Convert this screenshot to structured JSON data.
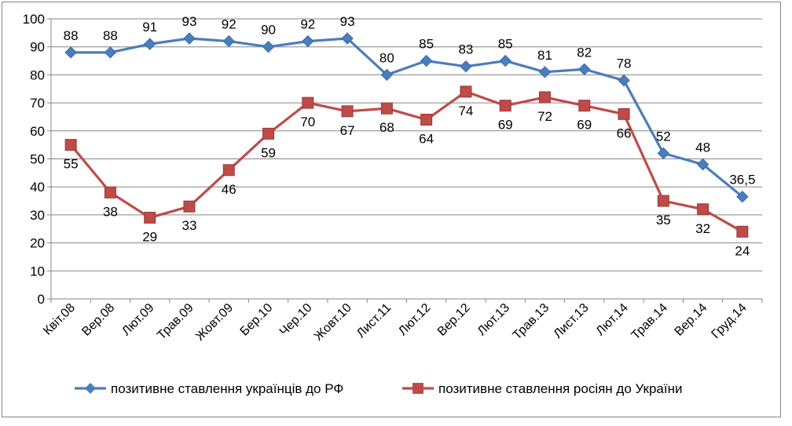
{
  "chart_data": {
    "type": "line",
    "title": "",
    "xlabel": "",
    "ylabel": "",
    "ylim": [
      0,
      100
    ],
    "yticks": [
      0,
      10,
      20,
      30,
      40,
      50,
      60,
      70,
      80,
      90,
      100
    ],
    "grid": true,
    "legend_position": "bottom",
    "categories": [
      "Квіт.08",
      "Вер.08",
      "Лют.09",
      "Трав.09",
      "Жовт.09",
      "Бер.10",
      "Чер.10",
      "Жовт.10",
      "Лист.11",
      "Лют.12",
      "Вер.12",
      "Лют.13",
      "Трав.13",
      "Лист.13",
      "Лют.14",
      "Трав.14",
      "Вер.14",
      "Груд.14"
    ],
    "series": [
      {
        "name": "позитивне ставлення українців до РФ",
        "color": "#4a7ebb",
        "marker": "diamond",
        "label_position": "above",
        "values": [
          88,
          88,
          91,
          93,
          92,
          90,
          92,
          93,
          80,
          85,
          83,
          85,
          81,
          82,
          78,
          52,
          48,
          36.5
        ],
        "labels": [
          "88",
          "88",
          "91",
          "93",
          "92",
          "90",
          "92",
          "93",
          "80",
          "85",
          "83",
          "85",
          "81",
          "82",
          "78",
          "52",
          "48",
          "36,5"
        ]
      },
      {
        "name": "позитивне ставлення росіян до України",
        "color": "#be4b48",
        "marker": "square",
        "label_position": "below",
        "values": [
          55,
          38,
          29,
          33,
          46,
          59,
          70,
          67,
          68,
          64,
          74,
          69,
          72,
          69,
          66,
          35,
          32,
          24
        ],
        "labels": [
          "55",
          "38",
          "29",
          "33",
          "46",
          "59",
          "70",
          "67",
          "68",
          "64",
          "74",
          "69",
          "72",
          "69",
          "66",
          "35",
          "32",
          "24"
        ]
      }
    ]
  }
}
